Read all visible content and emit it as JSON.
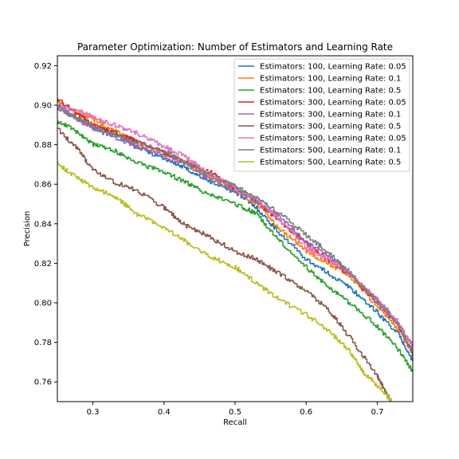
{
  "chart_data": {
    "type": "line",
    "title": "Parameter Optimization: Number of Estimators and Learning Rate",
    "xlabel": "Recall",
    "ylabel": "Precision",
    "xlim": [
      0.25,
      0.75
    ],
    "ylim": [
      0.75,
      0.925
    ],
    "xticks": [
      0.3,
      0.4,
      0.5,
      0.6,
      0.7
    ],
    "yticks": [
      0.76,
      0.78,
      0.8,
      0.82,
      0.84,
      0.86,
      0.88,
      0.9,
      0.92
    ],
    "xtick_labels": [
      "0.3",
      "0.4",
      "0.5",
      "0.6",
      "0.7"
    ],
    "ytick_labels": [
      "0.76",
      "0.78",
      "0.80",
      "0.82",
      "0.84",
      "0.86",
      "0.88",
      "0.90",
      "0.92"
    ],
    "grid": false,
    "legend_position": "top-right",
    "series": [
      {
        "name": "Estimators: 100, Learning Rate: 0.05",
        "color": "#1f77b4",
        "x": [
          0.25,
          0.28,
          0.3,
          0.33,
          0.36,
          0.4,
          0.43,
          0.46,
          0.5,
          0.53,
          0.56,
          0.6,
          0.63,
          0.66,
          0.7,
          0.73,
          0.75
        ],
        "y": [
          0.9,
          0.893,
          0.889,
          0.885,
          0.879,
          0.873,
          0.868,
          0.862,
          0.856,
          0.848,
          0.836,
          0.822,
          0.815,
          0.808,
          0.795,
          0.784,
          0.77
        ]
      },
      {
        "name": "Estimators: 100, Learning Rate: 0.1",
        "color": "#ff7f0e",
        "x": [
          0.25,
          0.28,
          0.3,
          0.33,
          0.36,
          0.4,
          0.43,
          0.46,
          0.5,
          0.53,
          0.56,
          0.6,
          0.63,
          0.66,
          0.7,
          0.73,
          0.75
        ],
        "y": [
          0.902,
          0.896,
          0.893,
          0.887,
          0.881,
          0.876,
          0.871,
          0.864,
          0.857,
          0.85,
          0.838,
          0.826,
          0.82,
          0.814,
          0.798,
          0.786,
          0.774
        ]
      },
      {
        "name": "Estimators: 100, Learning Rate: 0.5",
        "color": "#2ca02c",
        "x": [
          0.25,
          0.28,
          0.3,
          0.33,
          0.36,
          0.4,
          0.43,
          0.46,
          0.5,
          0.53,
          0.56,
          0.6,
          0.63,
          0.66,
          0.7,
          0.73,
          0.75
        ],
        "y": [
          0.892,
          0.886,
          0.88,
          0.877,
          0.871,
          0.866,
          0.861,
          0.855,
          0.85,
          0.845,
          0.832,
          0.818,
          0.808,
          0.8,
          0.788,
          0.776,
          0.765
        ]
      },
      {
        "name": "Estimators: 300, Learning Rate: 0.05",
        "color": "#d62728",
        "x": [
          0.25,
          0.28,
          0.3,
          0.33,
          0.36,
          0.4,
          0.43,
          0.46,
          0.5,
          0.53,
          0.56,
          0.6,
          0.63,
          0.66,
          0.7,
          0.73,
          0.75
        ],
        "y": [
          0.903,
          0.895,
          0.89,
          0.886,
          0.882,
          0.876,
          0.871,
          0.867,
          0.858,
          0.851,
          0.842,
          0.83,
          0.822,
          0.814,
          0.8,
          0.788,
          0.775
        ]
      },
      {
        "name": "Estimators: 300, Learning Rate: 0.1",
        "color": "#9467bd",
        "x": [
          0.25,
          0.28,
          0.3,
          0.33,
          0.36,
          0.4,
          0.43,
          0.46,
          0.5,
          0.53,
          0.56,
          0.6,
          0.63,
          0.66,
          0.7,
          0.73,
          0.75
        ],
        "y": [
          0.899,
          0.892,
          0.888,
          0.884,
          0.879,
          0.874,
          0.87,
          0.863,
          0.857,
          0.851,
          0.844,
          0.831,
          0.824,
          0.816,
          0.8,
          0.789,
          0.778
        ]
      },
      {
        "name": "Estimators: 300, Learning Rate: 0.5",
        "color": "#8c564b",
        "x": [
          0.25,
          0.28,
          0.3,
          0.33,
          0.36,
          0.4,
          0.43,
          0.46,
          0.5,
          0.53,
          0.56,
          0.6,
          0.63,
          0.66,
          0.7,
          0.71,
          0.72
        ],
        "y": [
          0.888,
          0.877,
          0.867,
          0.861,
          0.857,
          0.848,
          0.839,
          0.834,
          0.826,
          0.822,
          0.815,
          0.806,
          0.797,
          0.783,
          0.763,
          0.756,
          0.75
        ]
      },
      {
        "name": "Estimators: 500, Learning Rate: 0.05",
        "color": "#e377c2",
        "x": [
          0.25,
          0.28,
          0.3,
          0.33,
          0.36,
          0.4,
          0.43,
          0.46,
          0.5,
          0.53,
          0.56,
          0.6,
          0.63,
          0.66,
          0.7,
          0.73,
          0.75
        ],
        "y": [
          0.899,
          0.897,
          0.894,
          0.89,
          0.886,
          0.879,
          0.874,
          0.866,
          0.858,
          0.853,
          0.843,
          0.828,
          0.822,
          0.815,
          0.802,
          0.79,
          0.777
        ]
      },
      {
        "name": "Estimators: 500, Learning Rate: 0.1",
        "color": "#7f7f7f",
        "x": [
          0.25,
          0.28,
          0.3,
          0.33,
          0.36,
          0.4,
          0.43,
          0.46,
          0.5,
          0.53,
          0.56,
          0.6,
          0.63,
          0.66,
          0.7,
          0.73,
          0.75
        ],
        "y": [
          0.898,
          0.893,
          0.889,
          0.885,
          0.881,
          0.877,
          0.871,
          0.865,
          0.859,
          0.853,
          0.846,
          0.834,
          0.826,
          0.815,
          0.801,
          0.789,
          0.773
        ]
      },
      {
        "name": "Estimators: 500, Learning Rate: 0.5",
        "color": "#bcbd22",
        "x": [
          0.25,
          0.28,
          0.3,
          0.33,
          0.36,
          0.4,
          0.43,
          0.46,
          0.5,
          0.53,
          0.56,
          0.6,
          0.63,
          0.66,
          0.68,
          0.7,
          0.72
        ],
        "y": [
          0.87,
          0.863,
          0.858,
          0.854,
          0.845,
          0.838,
          0.831,
          0.824,
          0.818,
          0.81,
          0.802,
          0.794,
          0.786,
          0.776,
          0.765,
          0.758,
          0.75
        ]
      }
    ]
  }
}
